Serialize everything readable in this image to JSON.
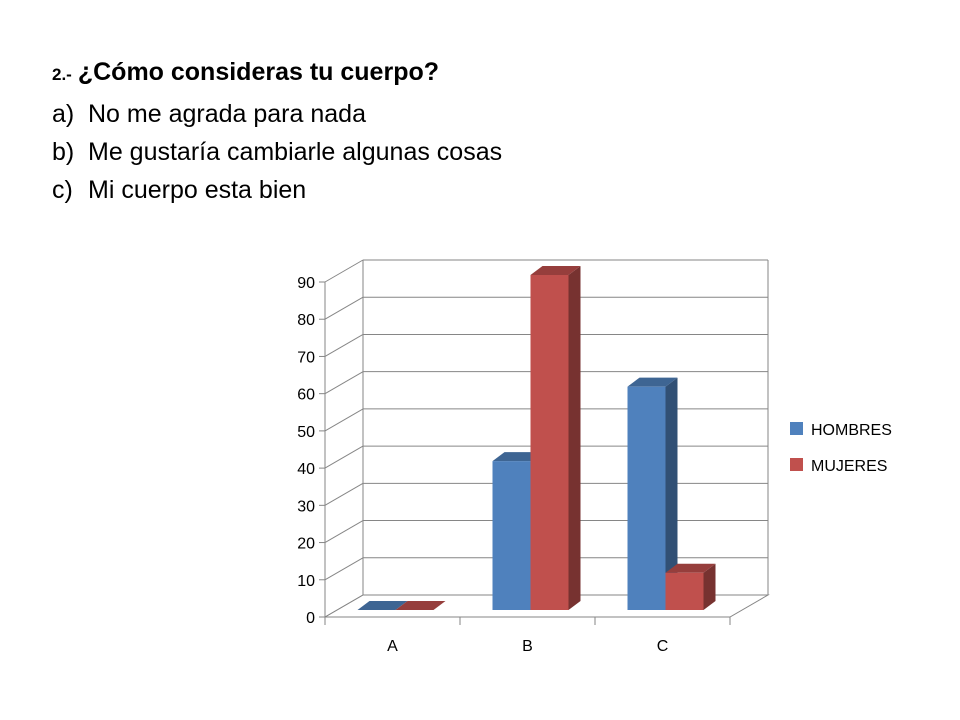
{
  "question": {
    "number": "2.-",
    "text": "¿Cómo consideras tu cuerpo?",
    "options": [
      {
        "marker": "a)",
        "text": "No me agrada para nada"
      },
      {
        "marker": "b)",
        "text": "Me gustaría cambiarle algunas cosas"
      },
      {
        "marker": "c)",
        "text": "Mi cuerpo esta bien"
      }
    ]
  },
  "chart_data": {
    "type": "bar",
    "style": "3d-clustered-column",
    "categories": [
      "A",
      "B",
      "C"
    ],
    "series": [
      {
        "name": "HOMBRES",
        "values": [
          0,
          40,
          60
        ],
        "color": "#4F81BD"
      },
      {
        "name": "MUJERES",
        "values": [
          0,
          90,
          10
        ],
        "color": "#C0504D"
      }
    ],
    "ylim": [
      0,
      90
    ],
    "yticks": [
      "0",
      "10",
      "20",
      "30",
      "40",
      "50",
      "60",
      "70",
      "80",
      "90"
    ],
    "grid": true,
    "legend_position": "right"
  }
}
